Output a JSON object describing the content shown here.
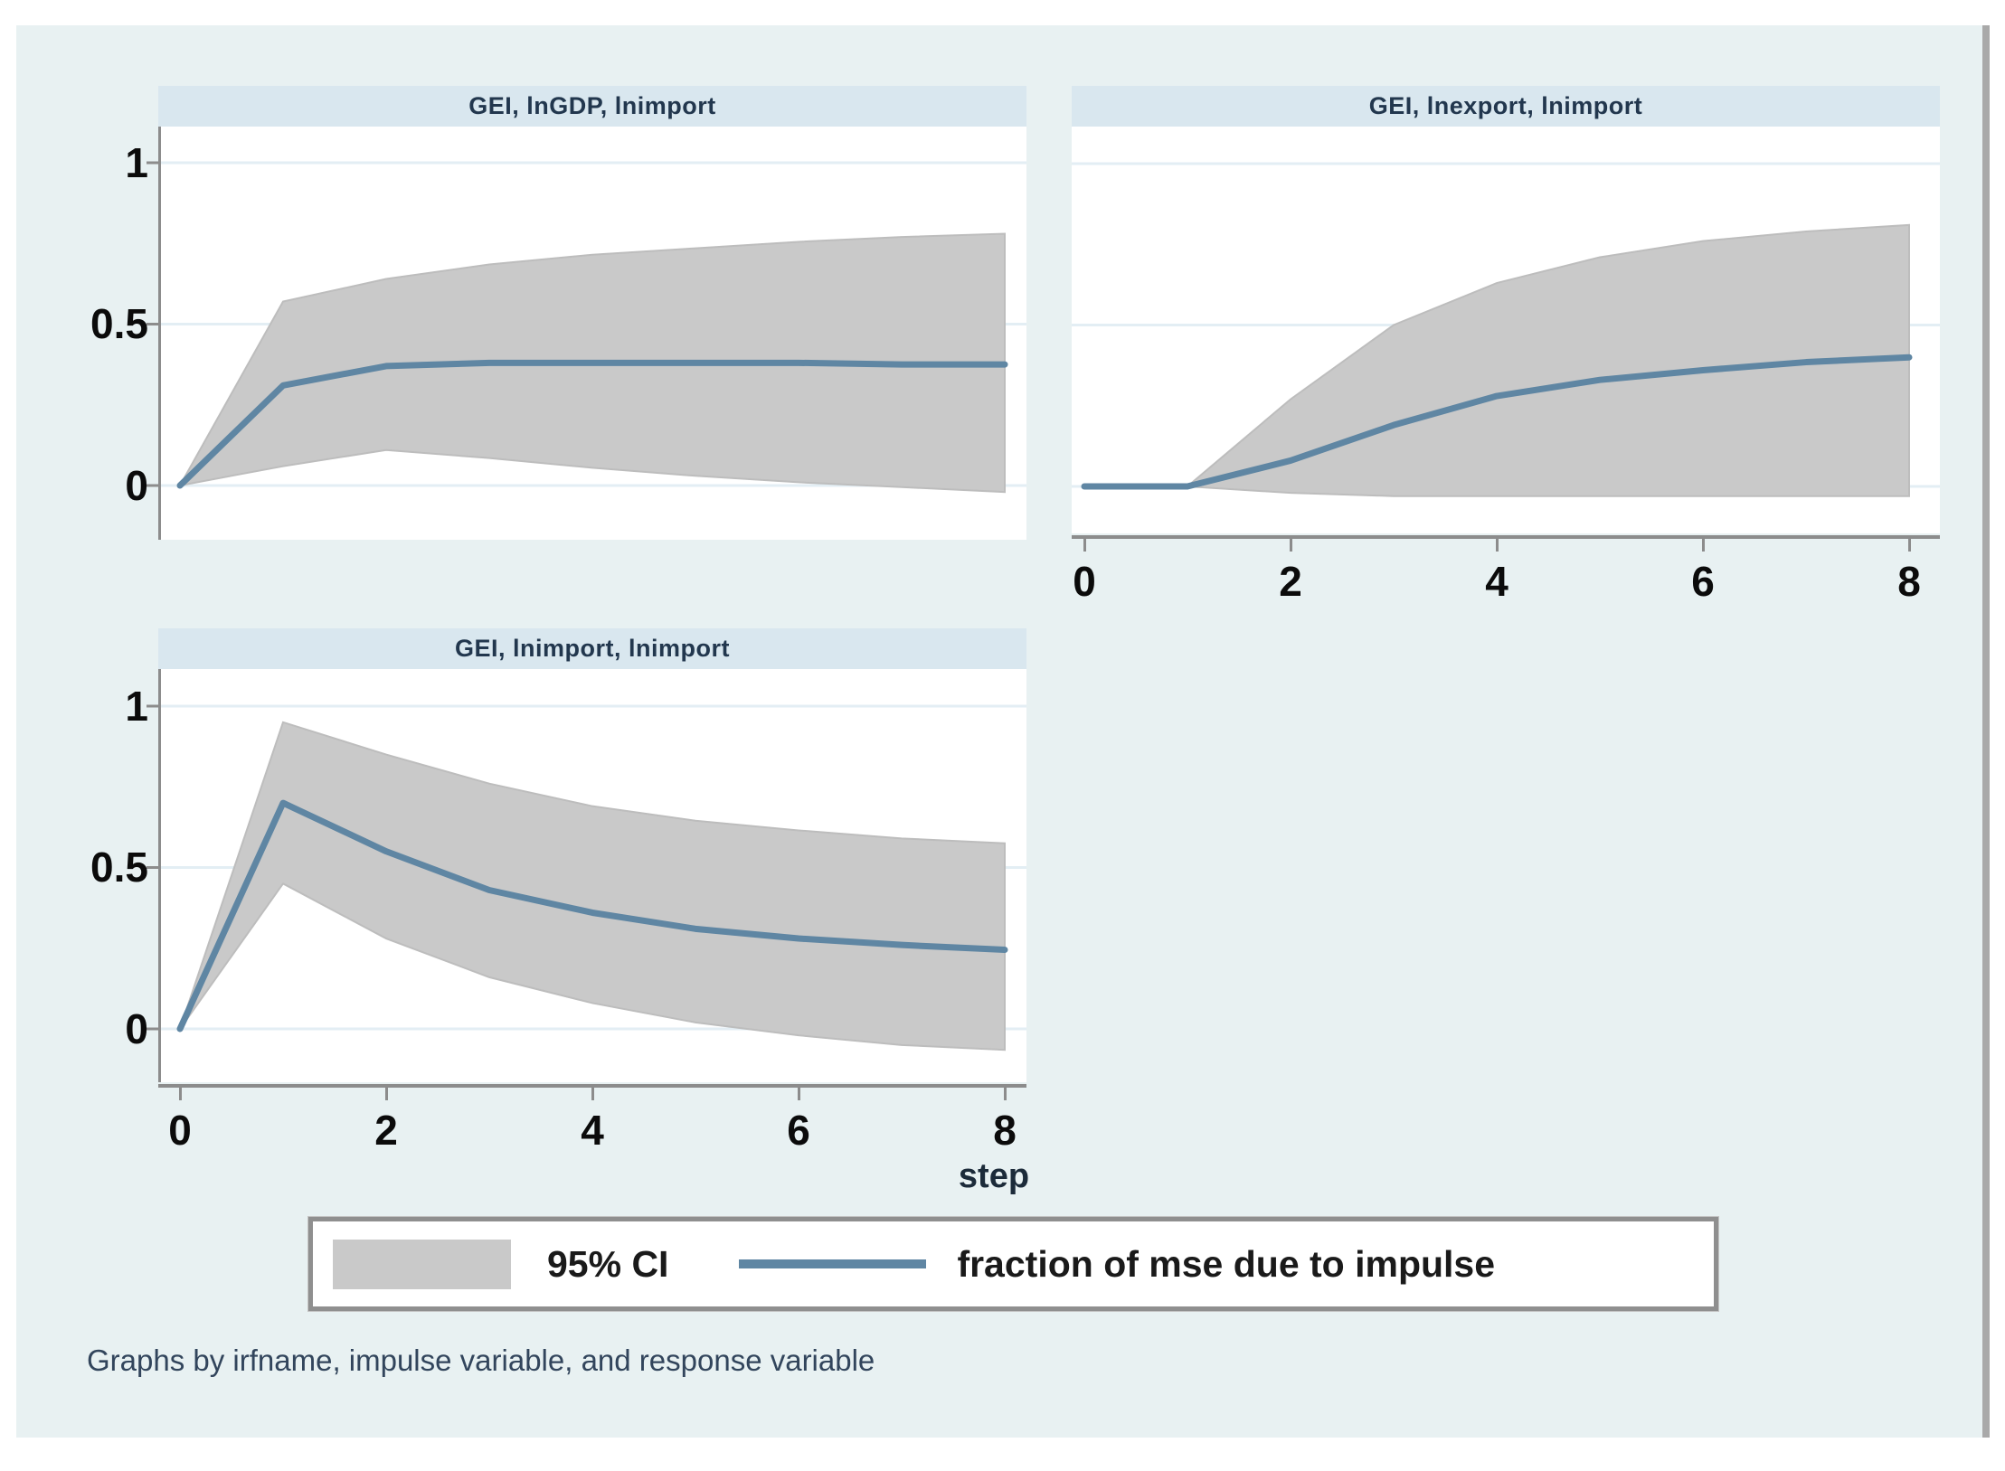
{
  "figure": {
    "xlabel": "step",
    "footnote": "Graphs by irfname, impulse variable, and response variable",
    "colors": {
      "background": "#e8f1f2",
      "plot_background": "#ffffff",
      "title_strip": "#d9e7ef",
      "ci_band": "#c9c9c9",
      "ci_band_edge": "#bdbdbd",
      "impulse_line": "#5f86a3",
      "grid_line": "#e3eef4",
      "axis_line": "#8c8c8c"
    },
    "legend": {
      "ci_label": "95% CI",
      "line_label": "fraction of mse due to impulse"
    }
  },
  "chart_data": [
    {
      "type": "area",
      "title": "GEI, lnGDP, lnimport",
      "x": [
        0,
        1,
        2,
        3,
        4,
        5,
        6,
        7,
        8
      ],
      "xlim": [
        0,
        8
      ],
      "ylim": [
        -0.17,
        1.12
      ],
      "grid": true,
      "legend_position": "bottom",
      "yticks": [
        0,
        0.5,
        1
      ],
      "ytick_labels": [
        "0",
        "0.5",
        "1"
      ],
      "series": [
        {
          "name": "fraction of mse due to impulse",
          "values": [
            0,
            0.31,
            0.37,
            0.38,
            0.38,
            0.38,
            0.38,
            0.375,
            0.375
          ]
        },
        {
          "name": "95% CI upper",
          "values": [
            0,
            0.57,
            0.64,
            0.685,
            0.715,
            0.735,
            0.755,
            0.77,
            0.78
          ]
        },
        {
          "name": "95% CI lower",
          "values": [
            0,
            0.06,
            0.11,
            0.085,
            0.055,
            0.03,
            0.01,
            -0.005,
            -0.02
          ]
        }
      ]
    },
    {
      "type": "area",
      "title": "GEI, lnexport, lnimport",
      "x": [
        0,
        1,
        2,
        3,
        4,
        5,
        6,
        7,
        8
      ],
      "xlim": [
        0,
        8
      ],
      "ylim": [
        -0.15,
        1.12
      ],
      "grid": true,
      "yticks": [
        0,
        0.5,
        1
      ],
      "xticks": [
        0,
        2,
        4,
        6,
        8
      ],
      "xtick_labels": [
        "0",
        "2",
        "4",
        "6",
        "8"
      ],
      "series": [
        {
          "name": "fraction of mse due to impulse",
          "values": [
            0,
            0,
            0.08,
            0.19,
            0.28,
            0.33,
            0.36,
            0.385,
            0.4
          ]
        },
        {
          "name": "95% CI upper",
          "values": [
            0,
            0,
            0.27,
            0.5,
            0.63,
            0.71,
            0.76,
            0.79,
            0.81
          ]
        },
        {
          "name": "95% CI lower",
          "values": [
            0,
            0,
            -0.02,
            -0.03,
            -0.03,
            -0.03,
            -0.03,
            -0.03,
            -0.03
          ]
        }
      ]
    },
    {
      "type": "area",
      "title": "GEI, lnimport, lnimport",
      "x": [
        0,
        1,
        2,
        3,
        4,
        5,
        6,
        7,
        8
      ],
      "xlim": [
        0,
        8
      ],
      "ylim": [
        -0.17,
        1.12
      ],
      "grid": true,
      "yticks": [
        0,
        0.5,
        1
      ],
      "ytick_labels": [
        "0",
        "0.5",
        "1"
      ],
      "xticks": [
        0,
        2,
        4,
        6,
        8
      ],
      "xtick_labels": [
        "0",
        "2",
        "4",
        "6",
        "8"
      ],
      "series": [
        {
          "name": "fraction of mse due to impulse",
          "values": [
            0,
            0.7,
            0.55,
            0.43,
            0.36,
            0.31,
            0.28,
            0.26,
            0.245
          ]
        },
        {
          "name": "95% CI upper",
          "values": [
            0,
            0.95,
            0.85,
            0.76,
            0.69,
            0.645,
            0.615,
            0.59,
            0.575
          ]
        },
        {
          "name": "95% CI lower",
          "values": [
            0,
            0.45,
            0.28,
            0.16,
            0.08,
            0.02,
            -0.02,
            -0.05,
            -0.065
          ]
        }
      ]
    }
  ]
}
